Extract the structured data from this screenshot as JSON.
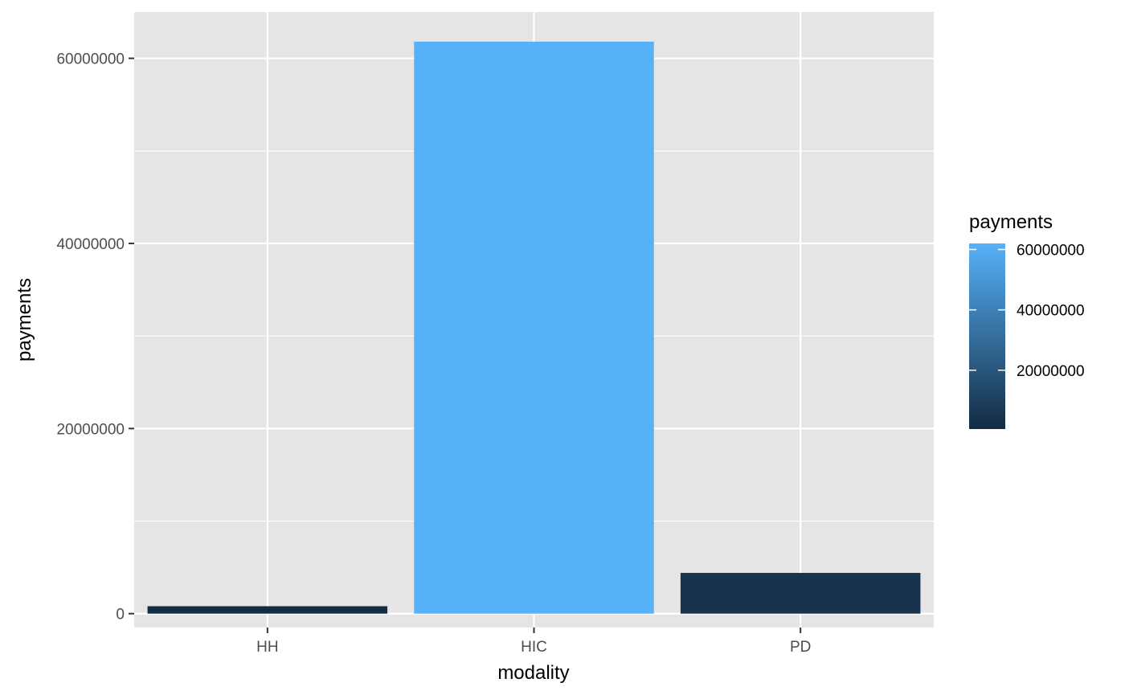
{
  "chart_data": {
    "type": "bar",
    "title": "",
    "xlabel": "modality",
    "ylabel": "payments",
    "categories": [
      "HH",
      "HIC",
      "PD"
    ],
    "values": [
      800000,
      61800000,
      4400000
    ],
    "ylim": [
      -1500000,
      65000000
    ],
    "yticks": [
      0,
      20000000,
      40000000,
      60000000
    ],
    "ytick_labels": [
      "0",
      "20000000",
      "40000000",
      "60000000"
    ],
    "grid": true,
    "panel_color": "#e5e5e5",
    "grid_color": "#ffffff",
    "legend": {
      "title": "payments",
      "type": "colorbar",
      "position": "right",
      "range": [
        500000,
        62000000
      ],
      "ticks": [
        20000000,
        40000000,
        60000000
      ],
      "tick_labels": [
        "20000000",
        "40000000",
        "60000000"
      ],
      "low_color": "#132b43",
      "high_color": "#56b1f7"
    }
  }
}
